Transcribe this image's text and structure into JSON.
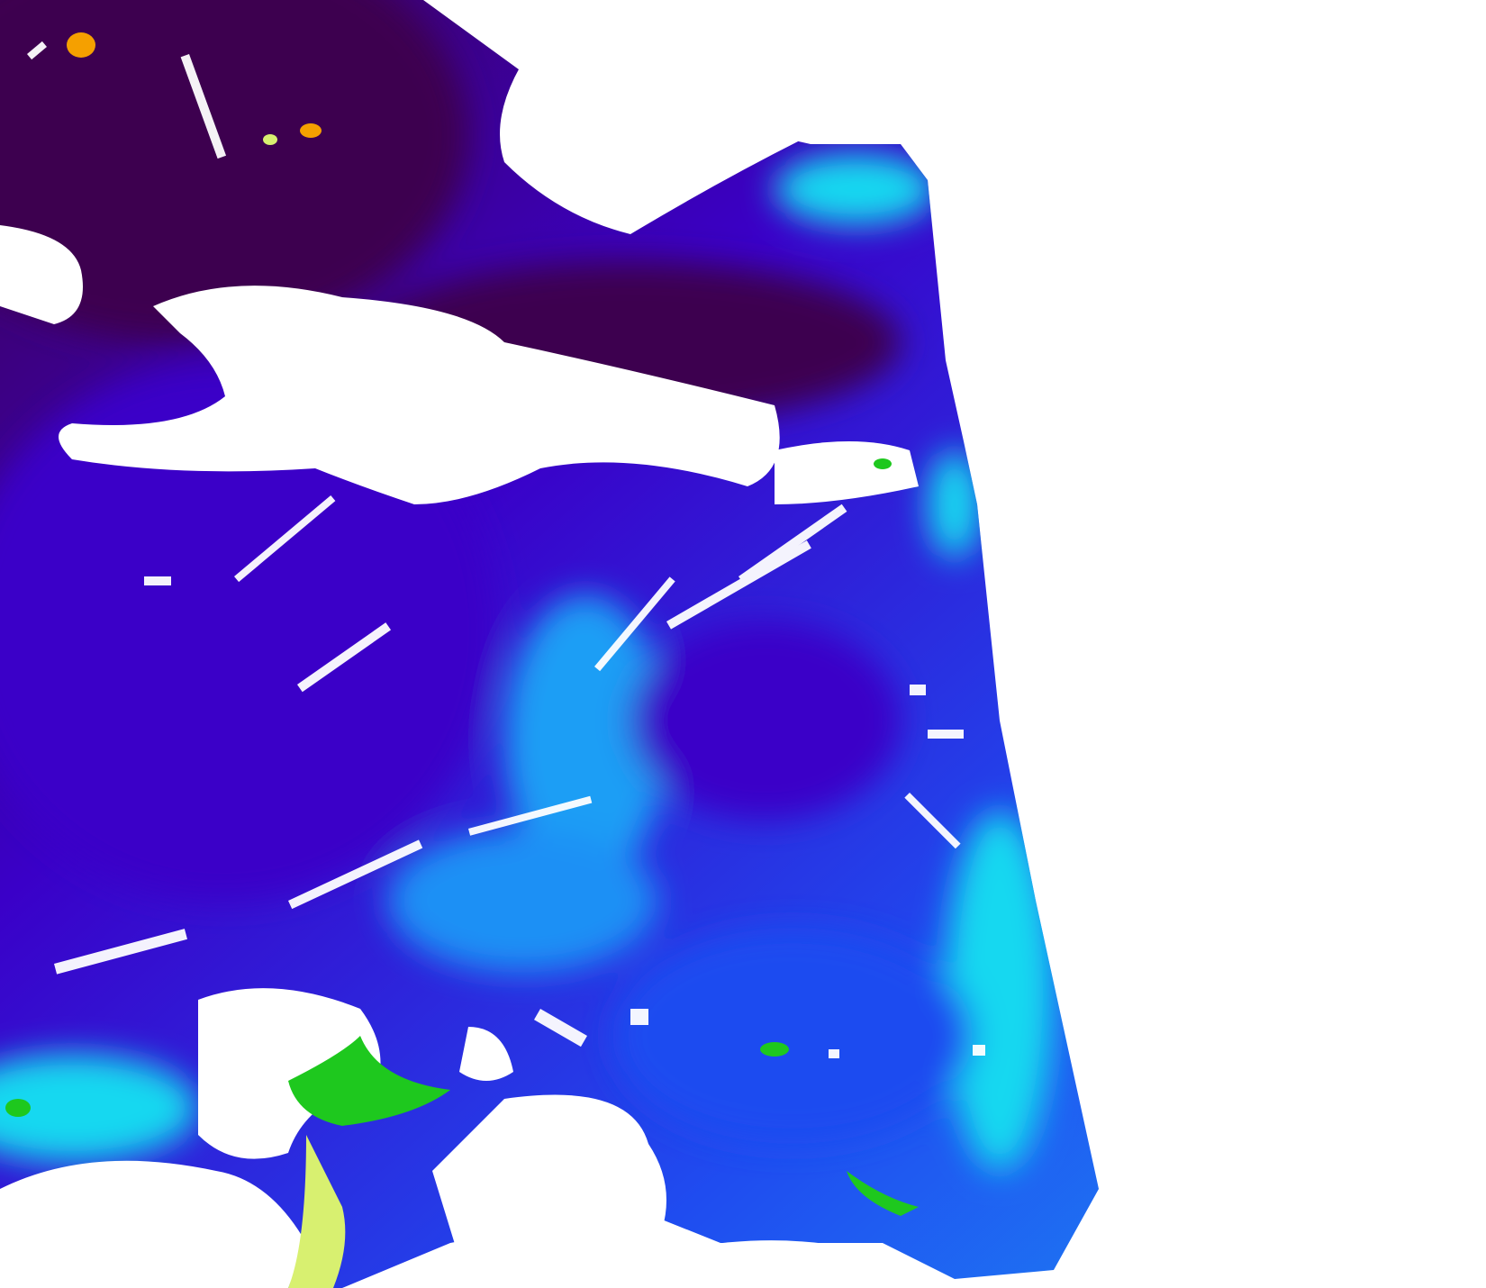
{
  "map": {
    "kind": "satellite ocean-color swath",
    "colors": {
      "background": "#ffffff",
      "deep_purple": "#3d0050",
      "indigo": "#3a00c8",
      "blue": "#1f4cf0",
      "light_blue": "#1e90f5",
      "cyan": "#18d8f0",
      "green": "#1ec81e",
      "yellow_green": "#d8f070",
      "orange": "#f5a000",
      "cloud_mask": "#ffffff"
    }
  }
}
